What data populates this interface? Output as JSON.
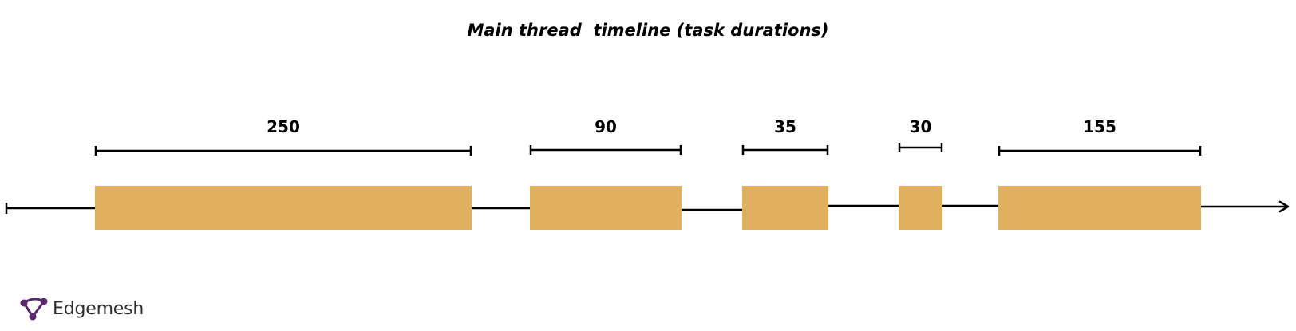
{
  "title": "Main thread  timeline (task durations)",
  "colors": {
    "task_fill": "#e1b05e",
    "line": "#000000",
    "brand": "#5b2a6e"
  },
  "tasks": [
    {
      "duration": 250,
      "label": "250"
    },
    {
      "duration": 90,
      "label": "90"
    },
    {
      "duration": 35,
      "label": "35"
    },
    {
      "duration": 30,
      "label": "30"
    },
    {
      "duration": 155,
      "label": "155"
    }
  ],
  "brand": {
    "name": "Edgemesh",
    "icon": "edgemesh-logo-icon"
  }
}
